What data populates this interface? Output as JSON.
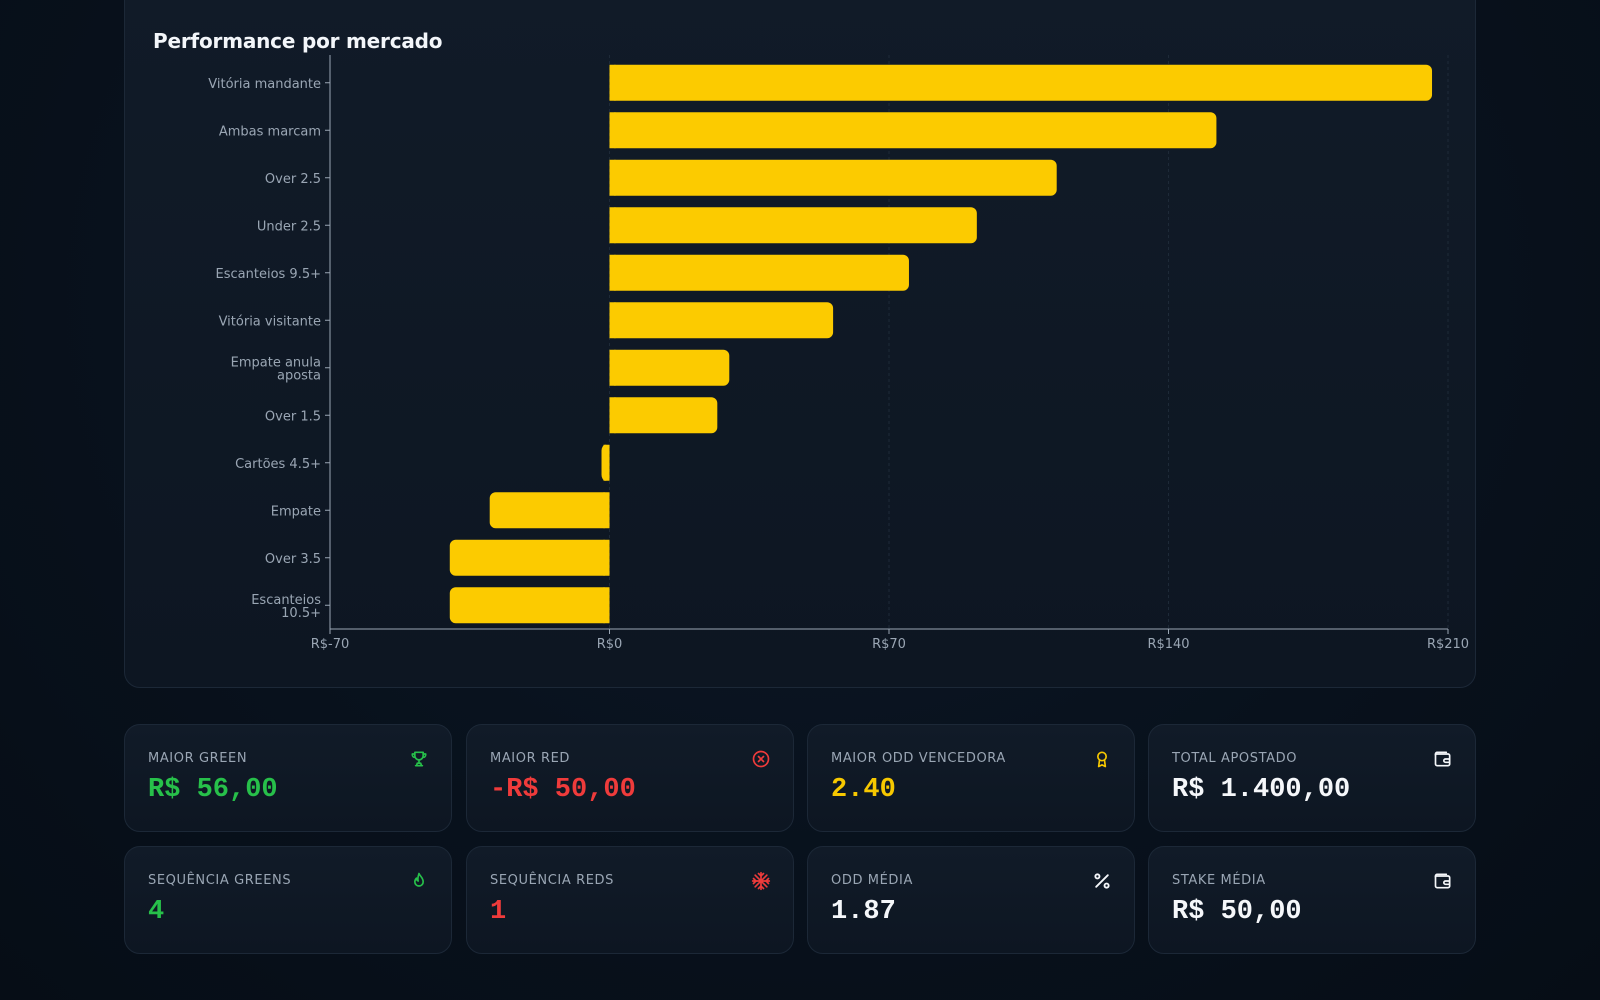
{
  "chart_panel": {
    "title": "Performance por mercado"
  },
  "chart_data": {
    "type": "bar",
    "orientation": "horizontal",
    "title": "Performance por mercado",
    "categories": [
      "Vitória mandante",
      "Ambas marcam",
      "Over 2.5",
      "Under 2.5",
      "Escanteios 9.5+",
      "Vitória visitante",
      "Empate anula aposta",
      "Over 1.5",
      "Cartões 4.5+",
      "Empate",
      "Over 3.5",
      "Escanteios 10.5+"
    ],
    "values": [
      206,
      152,
      112,
      92,
      75,
      56,
      30,
      27,
      -2,
      -30,
      -40,
      -40
    ],
    "xlim": [
      -70,
      210
    ],
    "x_ticks": [
      -70,
      0,
      70,
      140,
      210
    ],
    "x_tick_labels": [
      "R$-70",
      "R$0",
      "R$70",
      "R$140",
      "R$210"
    ],
    "bar_color": "#fccb00",
    "grid": "vertical dashed",
    "legend": "none"
  },
  "stats": [
    {
      "label": "MAIOR GREEN",
      "value": "R$ 56,00",
      "icon": "trophy-icon",
      "color": "#27c04a"
    },
    {
      "label": "MAIOR RED",
      "value": "-R$ 50,00",
      "icon": "x-circle-icon",
      "color": "#ef3b3b"
    },
    {
      "label": "MAIOR ODD VENCEDORA",
      "value": "2.40",
      "icon": "award-icon",
      "color": "#f7c800"
    },
    {
      "label": "TOTAL APOSTADO",
      "value": "R$ 1.400,00",
      "icon": "wallet-icon",
      "color": "#f5f7fa"
    },
    {
      "label": "SEQUÊNCIA GREENS",
      "value": "4",
      "icon": "flame-icon",
      "color": "#27c04a"
    },
    {
      "label": "SEQUÊNCIA REDS",
      "value": "1",
      "icon": "snowflake-icon",
      "color": "#ef3b3b"
    },
    {
      "label": "ODD MÉDIA",
      "value": "1.87",
      "icon": "percent-icon",
      "color": "#f5f7fa"
    },
    {
      "label": "STAKE MÉDIA",
      "value": "R$ 50,00",
      "icon": "wallet-icon",
      "color": "#f5f7fa"
    }
  ]
}
